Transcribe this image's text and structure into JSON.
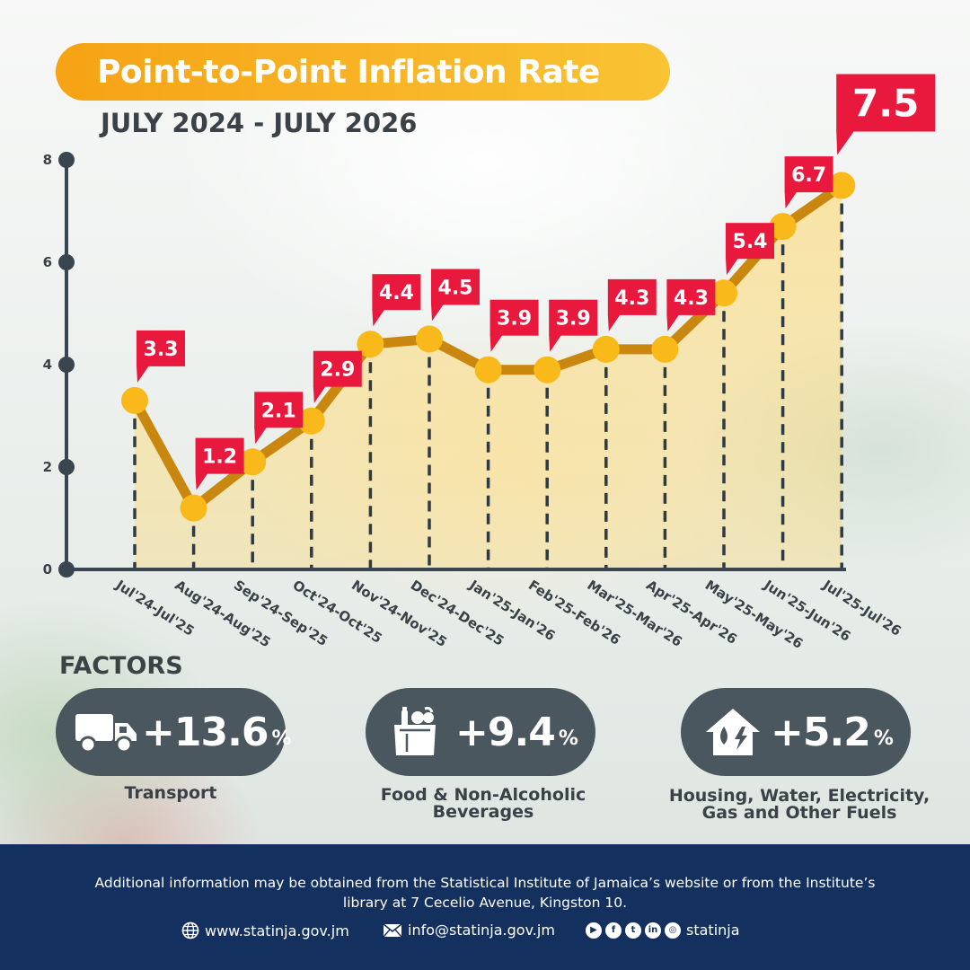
{
  "header": {
    "title": "Point-to-Point Inflation Rate",
    "subtitle": "JULY 2024 - JULY 2026"
  },
  "colors": {
    "accent_orange": "#f6a315",
    "line": "#c9870f",
    "point": "#f9b91a",
    "label_red": "#e8193c",
    "axis": "#3a4550",
    "footer_bg": "#13305f",
    "factor_bg": "#4b575e"
  },
  "chart_data": {
    "type": "line",
    "categories": [
      "Jul'24-Jul'25",
      "Aug'24-Aug'25",
      "Sep'24-Sep'25",
      "Oct'24-Oct'25",
      "Nov'24-Nov'25",
      "Dec'24-Dec'25",
      "Jan'25-Jan'26",
      "Feb'25-Feb'26",
      "Mar'25-Mar'26",
      "Apr'25-Apr'26",
      "May'25-May'26",
      "Jun'25-Jun'26",
      "Jul'25-Jul'26"
    ],
    "values": [
      3.3,
      1.2,
      2.1,
      2.9,
      4.4,
      4.5,
      3.9,
      3.9,
      4.3,
      4.3,
      5.4,
      6.7,
      7.5
    ],
    "data_labels": [
      "3.3",
      "1.2",
      "2.1",
      "2.9",
      "4.4",
      "4.5",
      "3.9",
      "3.9",
      "4.3",
      "4.3",
      "5.4",
      "6.7",
      "7.5"
    ],
    "y_ticks": [
      "0",
      "2",
      "4",
      "6",
      "8"
    ],
    "ylim": [
      0,
      8
    ],
    "title": "Point-to-Point Inflation Rate",
    "subtitle": "JULY 2024 - JULY 2026",
    "grid": false,
    "legend": "none"
  },
  "factors": {
    "heading": "FACTORS",
    "items": [
      {
        "icon": "truck-icon",
        "value": "+13.6",
        "unit": "%",
        "label_lines": [
          "Transport"
        ]
      },
      {
        "icon": "grocery-bag-icon",
        "value": "+9.4",
        "unit": "%",
        "label_lines": [
          "Food & Non-Alcoholic",
          "Beverages"
        ]
      },
      {
        "icon": "house-utilities-icon",
        "value": "+5.2",
        "unit": "%",
        "label_lines": [
          "Housing, Water, Electricity,",
          "Gas and Other Fuels"
        ]
      }
    ]
  },
  "footer": {
    "info_line1": "Additional information may be obtained from the Statistical Institute of Jamaica’s website or from the Institute’s",
    "info_line2": "library at 7 Cecelio Avenue, Kingston 10.",
    "website": "www.statinja.gov.jm",
    "email": "info@statinja.gov.jm",
    "social_handle": "statinja",
    "social_icons": [
      "youtube-icon",
      "facebook-icon",
      "twitter-icon",
      "linkedin-icon",
      "instagram-icon"
    ]
  }
}
